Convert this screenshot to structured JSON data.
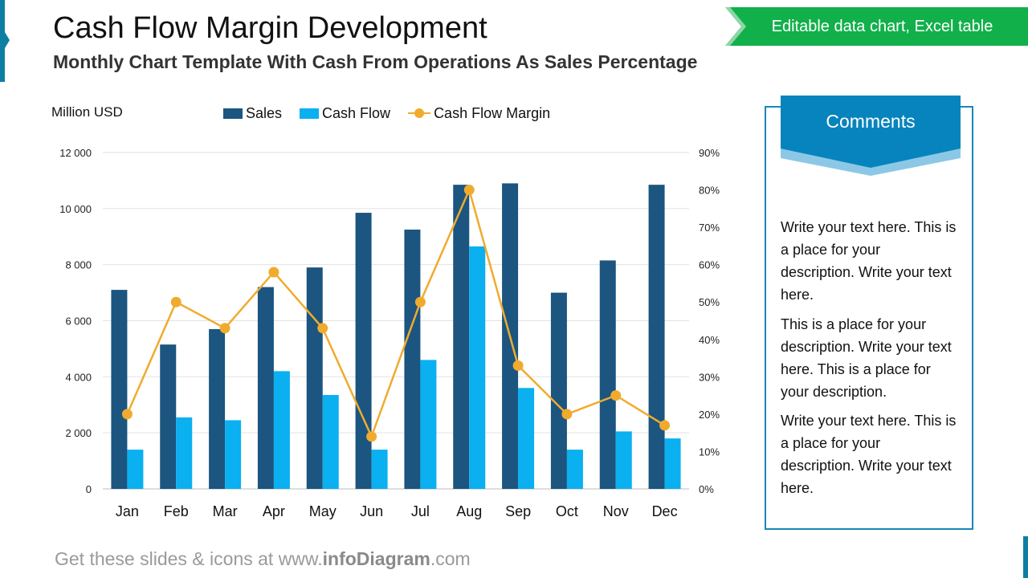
{
  "title": "Cash Flow Margin Development",
  "subtitle": "Monthly Chart Template With Cash From Operations As Sales Percentage",
  "badge": "Editable data chart, Excel table",
  "colors": {
    "sales": "#1b5580",
    "cash_flow": "#0ab0f0",
    "margin": "#f0ab2e",
    "accent": "#0d7fa3",
    "badge": "#12b04a",
    "comments": "#0784bd"
  },
  "chart_data": {
    "type": "bar",
    "unit_label": "Million USD",
    "categories": [
      "Jan",
      "Feb",
      "Mar",
      "Apr",
      "May",
      "Jun",
      "Jul",
      "Aug",
      "Sep",
      "Oct",
      "Nov",
      "Dec"
    ],
    "series": [
      {
        "name": "Sales",
        "type": "bar",
        "axis": "left",
        "values": [
          7100,
          5150,
          5700,
          7200,
          7900,
          9850,
          9250,
          10850,
          10900,
          7000,
          8150,
          10850
        ]
      },
      {
        "name": "Cash Flow",
        "type": "bar",
        "axis": "left",
        "values": [
          1400,
          2550,
          2450,
          4200,
          3350,
          1400,
          4600,
          8650,
          3600,
          1400,
          2050,
          1800
        ]
      },
      {
        "name": "Cash Flow Margin",
        "type": "line",
        "axis": "right",
        "values": [
          20,
          50,
          43,
          58,
          43,
          14,
          50,
          80,
          33,
          20,
          25,
          17
        ]
      }
    ],
    "ylim_left": [
      0,
      12000
    ],
    "ylim_right": [
      0,
      90
    ],
    "y_ticks_left": [
      "0",
      "2 000",
      "4 000",
      "6 000",
      "8 000",
      "10 000",
      "12 000"
    ],
    "y_ticks_right": [
      "0%",
      "10%",
      "20%",
      "30%",
      "40%",
      "50%",
      "60%",
      "70%",
      "80%",
      "90%"
    ],
    "grid": true,
    "legend_position": "top"
  },
  "comments": {
    "title": "Comments",
    "paragraphs": [
      "Write your text here. This is a place for your description. Write your text here.",
      "This is a place for your description. Write your text here. This is a place for your description.",
      "Write your text here. This is a place for your description. Write your text here."
    ]
  },
  "footer": {
    "prefix": "Get these slides & icons at www.",
    "brand": "infoDiagram",
    "suffix": ".com"
  }
}
